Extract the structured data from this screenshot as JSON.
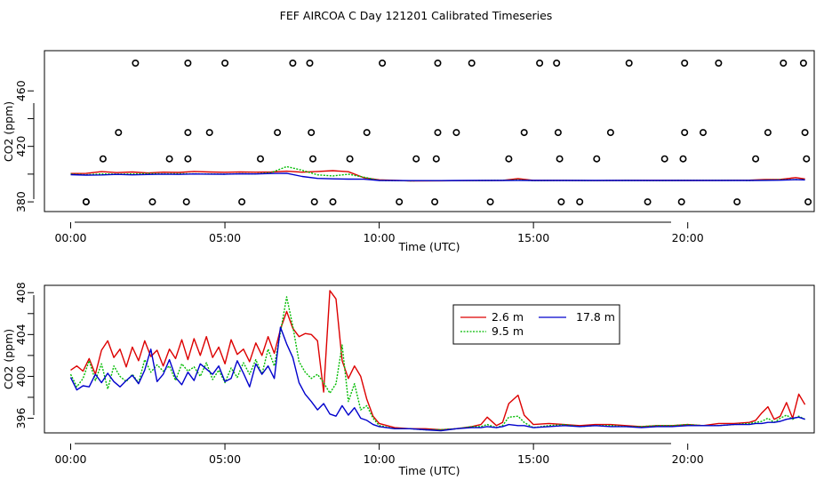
{
  "title": "FEF AIRCOA C  Day 121201  Calibrated Timeseries",
  "colors": {
    "s1": "#dd0000",
    "s2": "#00bb00",
    "s3": "#0000cc",
    "markers": "#000000"
  },
  "chart_data": [
    {
      "type": "scatter",
      "xlabel": "Time (UTC)",
      "ylabel": "CO2 (ppm)",
      "xlim": [
        -0.85,
        24.1
      ],
      "ylim": [
        373,
        489
      ],
      "xticks": [
        0,
        5,
        10,
        15,
        20
      ],
      "xtick_labels": [
        "00:00",
        "05:00",
        "10:00",
        "15:00",
        "20:00"
      ],
      "yticks": [
        380,
        400,
        420,
        440,
        460
      ],
      "ytick_labels": [
        "380",
        "",
        "420",
        "",
        "460"
      ],
      "marker_points": [
        {
          "x": 0.5,
          "y": 380
        },
        {
          "x": 2.1,
          "y": 480
        },
        {
          "x": 3.8,
          "y": 480
        },
        {
          "x": 5.0,
          "y": 480
        },
        {
          "x": 7.2,
          "y": 480
        },
        {
          "x": 7.75,
          "y": 480
        },
        {
          "x": 10.1,
          "y": 480
        },
        {
          "x": 11.9,
          "y": 480
        },
        {
          "x": 13.0,
          "y": 480
        },
        {
          "x": 15.2,
          "y": 480
        },
        {
          "x": 15.75,
          "y": 480
        },
        {
          "x": 18.1,
          "y": 480
        },
        {
          "x": 19.9,
          "y": 480
        },
        {
          "x": 21.0,
          "y": 480
        },
        {
          "x": 23.1,
          "y": 480
        },
        {
          "x": 23.75,
          "y": 480
        },
        {
          "x": 1.55,
          "y": 430
        },
        {
          "x": 3.8,
          "y": 430
        },
        {
          "x": 4.5,
          "y": 430
        },
        {
          "x": 6.7,
          "y": 430
        },
        {
          "x": 7.8,
          "y": 430
        },
        {
          "x": 9.6,
          "y": 430
        },
        {
          "x": 11.9,
          "y": 430
        },
        {
          "x": 12.5,
          "y": 430
        },
        {
          "x": 14.7,
          "y": 430
        },
        {
          "x": 15.8,
          "y": 430
        },
        {
          "x": 17.5,
          "y": 430
        },
        {
          "x": 19.9,
          "y": 430
        },
        {
          "x": 20.5,
          "y": 430
        },
        {
          "x": 22.6,
          "y": 430
        },
        {
          "x": 23.8,
          "y": 430
        },
        {
          "x": 1.05,
          "y": 411
        },
        {
          "x": 3.2,
          "y": 411
        },
        {
          "x": 3.8,
          "y": 411
        },
        {
          "x": 6.15,
          "y": 411
        },
        {
          "x": 7.85,
          "y": 411
        },
        {
          "x": 9.05,
          "y": 411
        },
        {
          "x": 11.2,
          "y": 411
        },
        {
          "x": 11.85,
          "y": 411
        },
        {
          "x": 14.2,
          "y": 411
        },
        {
          "x": 15.85,
          "y": 411
        },
        {
          "x": 17.05,
          "y": 411
        },
        {
          "x": 19.25,
          "y": 411
        },
        {
          "x": 19.85,
          "y": 411
        },
        {
          "x": 22.2,
          "y": 411
        },
        {
          "x": 23.85,
          "y": 411
        },
        {
          "x": 0.5,
          "y": 380
        },
        {
          "x": 2.65,
          "y": 380
        },
        {
          "x": 3.75,
          "y": 380
        },
        {
          "x": 5.55,
          "y": 380
        },
        {
          "x": 7.9,
          "y": 380
        },
        {
          "x": 8.5,
          "y": 380
        },
        {
          "x": 10.65,
          "y": 380
        },
        {
          "x": 11.8,
          "y": 380
        },
        {
          "x": 13.6,
          "y": 380
        },
        {
          "x": 15.9,
          "y": 380
        },
        {
          "x": 16.5,
          "y": 380
        },
        {
          "x": 18.7,
          "y": 380
        },
        {
          "x": 19.8,
          "y": 380
        },
        {
          "x": 21.6,
          "y": 380
        },
        {
          "x": 23.9,
          "y": 380
        }
      ],
      "series": [
        {
          "name": "2.6 m",
          "x": [
            0.0,
            0.5,
            1.0,
            1.5,
            2.0,
            2.5,
            3.0,
            3.5,
            4.0,
            4.5,
            5.0,
            5.5,
            6.0,
            6.5,
            7.0,
            7.5,
            8.0,
            8.5,
            9.0,
            9.5,
            10.0,
            11.0,
            12.0,
            13.0,
            14.0,
            14.5,
            15.0,
            16.0,
            17.0,
            18.0,
            19.0,
            20.0,
            21.0,
            22.0,
            22.5,
            23.0,
            23.5,
            23.8
          ],
          "y": [
            400.4,
            400.5,
            401.8,
            401.1,
            401.5,
            400.8,
            401.4,
            401.2,
            401.9,
            401.5,
            401.3,
            401.6,
            401.4,
            401.5,
            402.1,
            401.4,
            401.9,
            402.5,
            401.7,
            397.4,
            395.9,
            395.1,
            395.2,
            395.3,
            395.5,
            396.7,
            395.4,
            395.5,
            395.3,
            395.5,
            395.4,
            395.4,
            395.5,
            395.6,
            396.1,
            396.2,
            397.5,
            396.5
          ]
        },
        {
          "name": "9.5 m",
          "x": [
            0.0,
            0.5,
            1.0,
            1.5,
            2.0,
            2.5,
            3.0,
            3.5,
            4.0,
            4.5,
            5.0,
            5.5,
            6.0,
            6.5,
            7.0,
            7.5,
            8.0,
            8.5,
            9.0,
            9.5,
            10.0,
            11.0,
            12.0,
            13.0,
            14.0,
            14.5,
            15.0,
            16.0,
            17.0,
            18.0,
            19.0,
            20.0,
            21.0,
            22.0,
            22.5,
            23.0,
            23.5,
            23.8
          ],
          "y": [
            400.0,
            399.5,
            400.2,
            400.0,
            400.1,
            400.4,
            400.2,
            400.3,
            400.2,
            400.1,
            400.0,
            400.3,
            400.2,
            401.1,
            405.4,
            402.8,
            399.5,
            398.7,
            399.9,
            397.8,
            395.5,
            395.2,
            395.3,
            395.3,
            395.5,
            395.9,
            395.3,
            395.4,
            395.3,
            395.4,
            395.3,
            395.5,
            395.5,
            395.4,
            395.7,
            395.9,
            396.1,
            396.0
          ]
        },
        {
          "name": "17.8 m",
          "x": [
            0.0,
            0.5,
            1.0,
            1.5,
            2.0,
            2.5,
            3.0,
            3.5,
            4.0,
            4.5,
            5.0,
            5.5,
            6.0,
            6.5,
            7.0,
            7.5,
            8.0,
            8.5,
            9.0,
            9.5,
            10.0,
            11.0,
            12.0,
            13.0,
            14.0,
            14.5,
            15.0,
            16.0,
            17.0,
            18.0,
            19.0,
            20.0,
            21.0,
            22.0,
            22.5,
            23.0,
            23.5,
            23.8
          ],
          "y": [
            399.6,
            399.3,
            399.4,
            399.8,
            399.5,
            399.7,
            400.0,
            399.8,
            400.1,
            400.0,
            399.9,
            400.2,
            400.1,
            400.4,
            400.6,
            398.3,
            396.9,
            396.6,
            396.4,
            396.3,
            395.4,
            395.3,
            395.3,
            395.4,
            395.4,
            395.5,
            395.4,
            395.4,
            395.4,
            395.4,
            395.4,
            395.4,
            395.4,
            395.4,
            395.5,
            395.6,
            396.0,
            395.8
          ]
        }
      ]
    },
    {
      "type": "line",
      "xlabel": "Time (UTC)",
      "ylabel": "CO2 (ppm)",
      "xlim": [
        -0.85,
        24.1
      ],
      "ylim": [
        394.6,
        408.7
      ],
      "xticks": [
        0,
        5,
        10,
        15,
        20
      ],
      "xtick_labels": [
        "00:00",
        "05:00",
        "10:00",
        "15:00",
        "20:00"
      ],
      "yticks": [
        396,
        398,
        400,
        402,
        404,
        406,
        408
      ],
      "ytick_labels": [
        "396",
        "",
        "400",
        "",
        "404",
        "",
        "408"
      ],
      "legend": [
        "2.6 m",
        "17.8 m",
        "9.5 m"
      ],
      "legend_position": "top-right",
      "series": [
        {
          "name": "2.6 m",
          "x": [
            0.0,
            0.2,
            0.4,
            0.6,
            0.8,
            1.0,
            1.2,
            1.4,
            1.6,
            1.8,
            2.0,
            2.2,
            2.4,
            2.6,
            2.8,
            3.0,
            3.2,
            3.4,
            3.6,
            3.8,
            4.0,
            4.2,
            4.4,
            4.6,
            4.8,
            5.0,
            5.2,
            5.4,
            5.6,
            5.8,
            6.0,
            6.2,
            6.4,
            6.6,
            6.8,
            7.0,
            7.2,
            7.4,
            7.6,
            7.8,
            8.0,
            8.2,
            8.4,
            8.6,
            8.8,
            9.0,
            9.2,
            9.4,
            9.6,
            9.8,
            10.0,
            10.5,
            11.0,
            11.5,
            12.0,
            12.5,
            13.0,
            13.3,
            13.5,
            13.8,
            14.0,
            14.2,
            14.5,
            14.7,
            15.0,
            15.5,
            16.0,
            16.5,
            17.0,
            17.5,
            18.0,
            18.5,
            19.0,
            19.5,
            20.0,
            20.5,
            21.0,
            21.5,
            22.0,
            22.2,
            22.4,
            22.6,
            22.8,
            23.0,
            23.2,
            23.4,
            23.6,
            23.8
          ],
          "y": [
            400.6,
            401.0,
            400.5,
            401.7,
            400.2,
            402.5,
            403.4,
            401.8,
            402.6,
            400.9,
            402.8,
            401.5,
            403.4,
            401.9,
            402.5,
            401.0,
            402.6,
            401.7,
            403.5,
            401.6,
            403.6,
            402.0,
            403.8,
            401.8,
            402.8,
            401.2,
            403.5,
            402.1,
            402.6,
            401.4,
            403.2,
            402.0,
            403.8,
            402.2,
            404.5,
            406.2,
            404.6,
            403.8,
            404.1,
            404.0,
            403.4,
            398.5,
            408.2,
            407.4,
            401.5,
            399.8,
            401.0,
            400.0,
            397.8,
            396.2,
            395.5,
            395.1,
            395.0,
            395.0,
            394.9,
            395.0,
            395.2,
            395.4,
            396.1,
            395.3,
            395.6,
            397.4,
            398.2,
            396.3,
            395.4,
            395.5,
            395.4,
            395.3,
            395.4,
            395.4,
            395.3,
            395.2,
            395.3,
            395.3,
            395.4,
            395.3,
            395.5,
            395.5,
            395.6,
            395.8,
            396.5,
            397.1,
            395.9,
            396.2,
            397.5,
            396.0,
            398.3,
            397.3
          ]
        },
        {
          "name": "9.5 m",
          "x": [
            0.0,
            0.2,
            0.4,
            0.6,
            0.8,
            1.0,
            1.2,
            1.4,
            1.6,
            1.8,
            2.0,
            2.2,
            2.4,
            2.6,
            2.8,
            3.0,
            3.2,
            3.4,
            3.6,
            3.8,
            4.0,
            4.2,
            4.4,
            4.6,
            4.8,
            5.0,
            5.2,
            5.4,
            5.6,
            5.8,
            6.0,
            6.2,
            6.4,
            6.6,
            6.8,
            7.0,
            7.2,
            7.4,
            7.6,
            7.8,
            8.0,
            8.2,
            8.4,
            8.6,
            8.8,
            9.0,
            9.2,
            9.4,
            9.6,
            9.8,
            10.0,
            10.5,
            11.0,
            11.5,
            12.0,
            12.5,
            13.0,
            13.3,
            13.5,
            13.8,
            14.0,
            14.2,
            14.5,
            14.7,
            15.0,
            15.5,
            16.0,
            16.5,
            17.0,
            17.5,
            18.0,
            18.5,
            19.0,
            19.5,
            20.0,
            20.5,
            21.0,
            21.5,
            22.0,
            22.2,
            22.4,
            22.6,
            22.8,
            23.0,
            23.2,
            23.4,
            23.6,
            23.8
          ],
          "y": [
            400.2,
            399.0,
            399.8,
            401.5,
            399.6,
            401.2,
            398.8,
            401.0,
            400.0,
            399.5,
            400.2,
            399.4,
            401.6,
            400.4,
            401.1,
            400.5,
            401.0,
            399.6,
            401.2,
            400.5,
            400.9,
            400.0,
            401.3,
            399.7,
            400.6,
            399.4,
            400.8,
            399.9,
            401.3,
            400.2,
            401.6,
            400.2,
            402.6,
            401.0,
            404.2,
            407.6,
            404.8,
            401.4,
            400.4,
            399.8,
            400.2,
            399.4,
            398.4,
            399.3,
            403.0,
            397.6,
            399.3,
            396.8,
            397.2,
            396.0,
            395.3,
            395.0,
            395.0,
            394.9,
            394.9,
            395.0,
            395.2,
            395.2,
            395.4,
            395.1,
            395.3,
            396.1,
            396.2,
            395.6,
            395.1,
            395.3,
            395.4,
            395.2,
            395.3,
            395.3,
            395.2,
            395.2,
            395.3,
            395.3,
            395.4,
            395.3,
            395.3,
            395.4,
            395.5,
            395.6,
            395.7,
            396.0,
            395.6,
            396.0,
            396.3,
            395.9,
            396.2,
            395.9
          ]
        },
        {
          "name": "17.8 m",
          "x": [
            0.0,
            0.2,
            0.4,
            0.6,
            0.8,
            1.0,
            1.2,
            1.4,
            1.6,
            1.8,
            2.0,
            2.2,
            2.4,
            2.6,
            2.8,
            3.0,
            3.2,
            3.4,
            3.6,
            3.8,
            4.0,
            4.2,
            4.4,
            4.6,
            4.8,
            5.0,
            5.2,
            5.4,
            5.6,
            5.8,
            6.0,
            6.2,
            6.4,
            6.6,
            6.8,
            7.0,
            7.2,
            7.4,
            7.6,
            7.8,
            8.0,
            8.2,
            8.4,
            8.6,
            8.8,
            9.0,
            9.2,
            9.4,
            9.6,
            9.8,
            10.0,
            10.5,
            11.0,
            11.5,
            12.0,
            12.5,
            13.0,
            13.3,
            13.5,
            13.8,
            14.0,
            14.2,
            14.5,
            14.7,
            15.0,
            15.5,
            16.0,
            16.5,
            17.0,
            17.5,
            18.0,
            18.5,
            19.0,
            19.5,
            20.0,
            20.5,
            21.0,
            21.5,
            22.0,
            22.2,
            22.4,
            22.6,
            22.8,
            23.0,
            23.2,
            23.4,
            23.6,
            23.8
          ],
          "y": [
            399.9,
            398.7,
            399.1,
            399.0,
            400.2,
            399.4,
            400.3,
            399.5,
            399.0,
            399.6,
            400.1,
            399.3,
            400.6,
            402.6,
            399.5,
            400.2,
            401.6,
            399.9,
            399.2,
            400.4,
            399.6,
            401.2,
            400.7,
            400.2,
            401.0,
            399.5,
            399.8,
            401.5,
            400.3,
            399.0,
            401.2,
            400.2,
            401.0,
            399.8,
            404.7,
            403.1,
            401.8,
            399.4,
            398.3,
            397.6,
            396.8,
            397.4,
            396.4,
            396.2,
            397.2,
            396.3,
            397.0,
            396.0,
            395.8,
            395.4,
            395.2,
            395.0,
            395.0,
            394.9,
            394.8,
            395.0,
            395.1,
            395.1,
            395.2,
            395.1,
            395.2,
            395.4,
            395.3,
            395.3,
            395.1,
            395.2,
            395.3,
            395.2,
            395.3,
            395.2,
            395.2,
            395.1,
            395.2,
            395.2,
            395.3,
            395.3,
            395.3,
            395.4,
            395.4,
            395.5,
            395.5,
            395.6,
            395.6,
            395.7,
            395.9,
            396.0,
            396.1,
            395.9
          ]
        }
      ]
    }
  ]
}
